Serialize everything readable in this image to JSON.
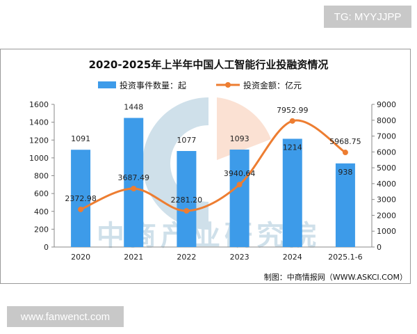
{
  "overlay": {
    "top_right": "TG: MYYJJPP",
    "bottom_left": "www.fanwenct.com"
  },
  "watermark": "中商产业研究院",
  "source": "制图：中商情报网（WWW.ASKCI.COM）",
  "colors": {
    "bar": "#3d9be9",
    "line": "#ed7d31",
    "watermark_blue": "#cfe0ea",
    "watermark_orange": "#fbe1d3"
  },
  "chart_data": {
    "type": "bar+line",
    "title": "2020-2025年上半年中国人工智能行业投融资情况",
    "categories": [
      "2020",
      "2021",
      "2022",
      "2023",
      "2024",
      "2025.1-6"
    ],
    "series": [
      {
        "name": "投资事件数量：起",
        "type": "bar",
        "axis": "left",
        "values": [
          1091,
          1448,
          1077,
          1093,
          1214,
          938
        ],
        "labels": [
          "1091",
          "1448",
          "1077",
          "1093",
          "1214",
          "938"
        ]
      },
      {
        "name": "投资金额：亿元",
        "type": "line",
        "axis": "right",
        "values": [
          2372.98,
          3687.49,
          2281.2,
          3940.64,
          7952.99,
          5968.75
        ],
        "labels": [
          "2372.98",
          "3687.49",
          "2281.20",
          "3940.64",
          "7952.99",
          "5968.75"
        ]
      }
    ],
    "left_axis": {
      "ylim": [
        0,
        1600
      ],
      "ticks": [
        "0",
        "200",
        "400",
        "600",
        "800",
        "1000",
        "1200",
        "1400",
        "1600"
      ]
    },
    "right_axis": {
      "ylim": [
        0,
        9000
      ],
      "ticks": [
        "0",
        "1000",
        "2000",
        "3000",
        "4000",
        "5000",
        "6000",
        "7000",
        "8000",
        "9000"
      ]
    },
    "legend": "top",
    "grid": false
  }
}
